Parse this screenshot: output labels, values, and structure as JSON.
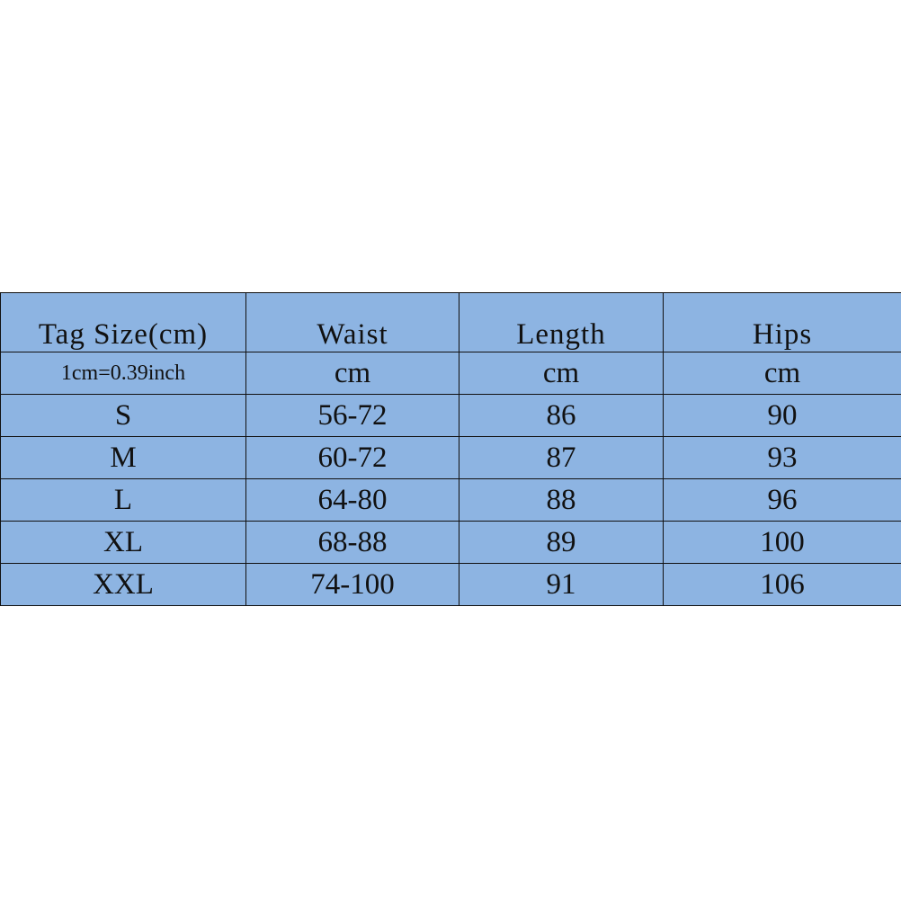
{
  "table": {
    "header": [
      "Tag Size(cm)",
      "Waist",
      "Length",
      "Hips"
    ],
    "units": [
      "1cm=0.39inch",
      "cm",
      "cm",
      "cm"
    ],
    "rows": [
      [
        "S",
        "56-72",
        "86",
        "90"
      ],
      [
        "M",
        "60-72",
        "87",
        "93"
      ],
      [
        "L",
        "64-80",
        "88",
        "96"
      ],
      [
        "XL",
        "68-88",
        "89",
        "100"
      ],
      [
        "XXL",
        "74-100",
        "91",
        "106"
      ]
    ]
  }
}
